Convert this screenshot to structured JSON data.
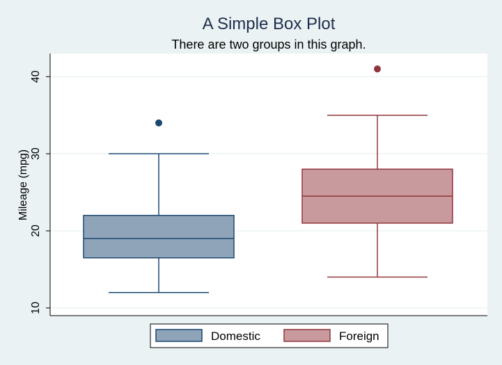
{
  "chart_data": {
    "type": "box",
    "title": "A Simple Box Plot",
    "subtitle": "There are two groups in this graph.",
    "ylabel": "Mileage (mpg)",
    "xlabel": "",
    "ylim": [
      9,
      43
    ],
    "yticks": [
      10,
      20,
      30,
      40
    ],
    "grid": true,
    "legend_position": "bottom",
    "series": [
      {
        "name": "Domestic",
        "color": "#1a476f",
        "fill": "#90a4b9",
        "whisker_low": 12,
        "q1": 16.5,
        "median": 19,
        "q3": 22,
        "whisker_high": 30,
        "outliers": [
          34
        ]
      },
      {
        "name": "Foreign",
        "color": "#90353b",
        "fill": "#c89a9d",
        "whisker_low": 14,
        "q1": 21,
        "median": 24.5,
        "q3": 28,
        "whisker_high": 35,
        "outliers": [
          41
        ]
      }
    ]
  }
}
